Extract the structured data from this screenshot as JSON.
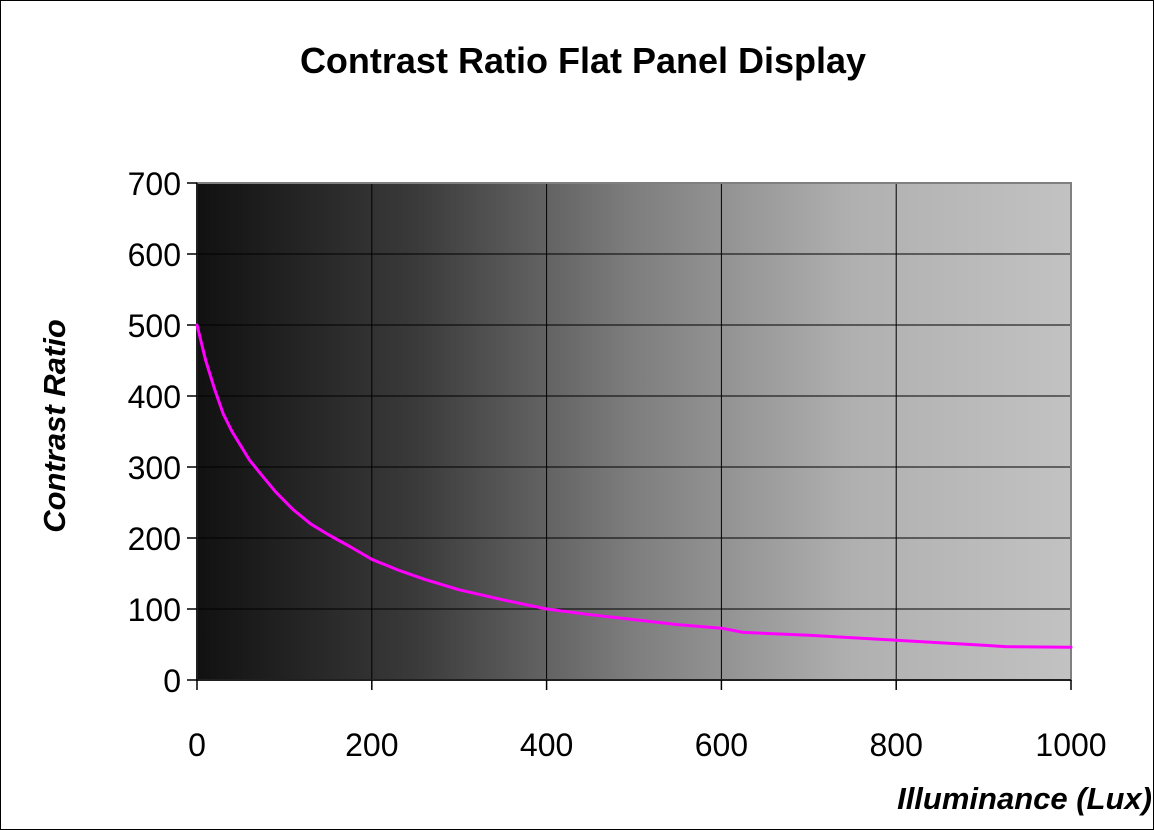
{
  "chart_data": {
    "type": "line",
    "title": "Contrast Ratio Flat Panel Display",
    "xlabel": "Illuminance (Lux)",
    "ylabel": "Contrast Ratio",
    "xlim": [
      0,
      1000
    ],
    "ylim": [
      0,
      700
    ],
    "x_ticks": [
      "0",
      "200",
      "400",
      "600",
      "800",
      "1000"
    ],
    "y_ticks": [
      "0",
      "100",
      "200",
      "300",
      "400",
      "500",
      "600",
      "700"
    ],
    "grid": true,
    "legend": "none",
    "background": "horizontal gradient from black (#111111) on the left to light gray (#c2c2c2) on the right",
    "series": [
      {
        "color": "#ff00ff",
        "x": [
          0,
          10,
          20,
          30,
          40,
          50,
          60,
          75,
          90,
          110,
          130,
          150,
          175,
          200,
          230,
          260,
          300,
          350,
          400,
          450,
          500,
          550,
          600,
          625,
          700,
          800,
          900,
          925,
          1000
        ],
        "y": [
          500,
          450,
          410,
          375,
          350,
          330,
          310,
          287,
          265,
          240,
          220,
          205,
          188,
          170,
          155,
          142,
          127,
          113,
          100,
          92,
          85,
          78,
          73,
          67,
          63,
          56,
          49,
          47,
          46
        ]
      }
    ]
  }
}
